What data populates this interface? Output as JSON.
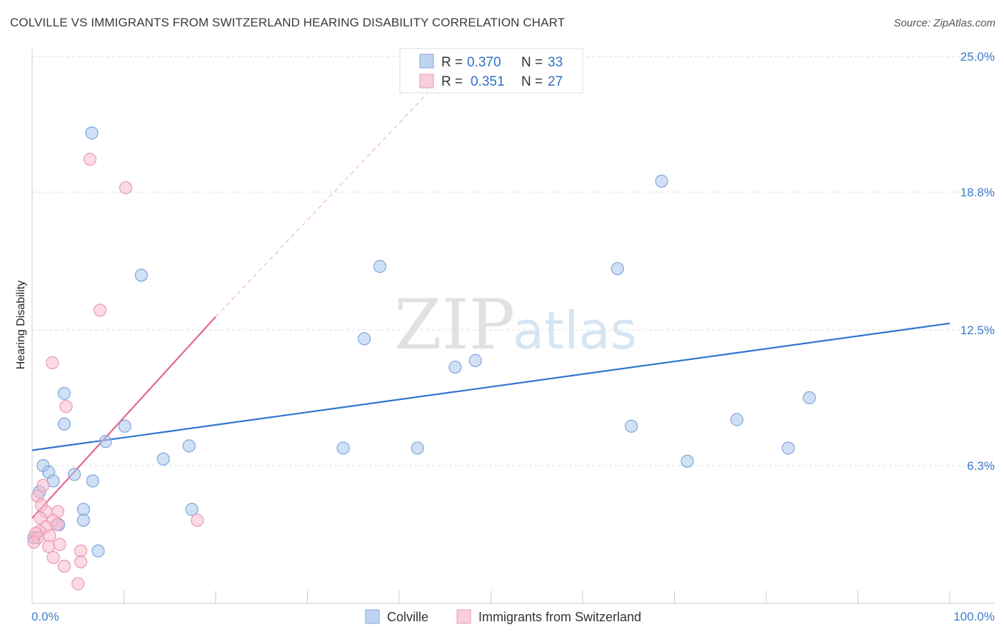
{
  "title": "COLVILLE VS IMMIGRANTS FROM SWITZERLAND HEARING DISABILITY CORRELATION CHART",
  "source": "Source: ZipAtlas.com",
  "watermark": {
    "zip": "ZIP",
    "atlas": "atlas"
  },
  "legend": {
    "rows": [
      {
        "r_label": "R =",
        "r_value": "0.370",
        "n_label": "N =",
        "n_value": "33"
      },
      {
        "r_label": "R =",
        "r_value": "0.351",
        "n_label": "N =",
        "n_value": "27"
      }
    ]
  },
  "chart_data": {
    "type": "scatter",
    "title": "COLVILLE VS IMMIGRANTS FROM SWITZERLAND HEARING DISABILITY CORRELATION CHART",
    "xlabel": "",
    "ylabel": "Hearing Disability",
    "xlim": [
      0,
      100
    ],
    "ylim": [
      0,
      25
    ],
    "x_tick_labels": [
      "0.0%",
      "100.0%"
    ],
    "y_ticks": [
      6.3,
      12.5,
      18.8,
      25.0
    ],
    "y_tick_labels": [
      "6.3%",
      "12.5%",
      "18.8%",
      "25.0%"
    ],
    "grid": true,
    "legend_position": "top-center",
    "series": [
      {
        "name": "Colville",
        "color": "#a9c6ec",
        "line_color": "#2f75d0",
        "R": 0.37,
        "N": 33,
        "trend": {
          "x": [
            0,
            100
          ],
          "y": [
            7.0,
            12.8
          ]
        },
        "points": [
          {
            "x": 6.5,
            "y": 21.5
          },
          {
            "x": 11.9,
            "y": 15.0
          },
          {
            "x": 3.5,
            "y": 9.6
          },
          {
            "x": 3.5,
            "y": 8.2
          },
          {
            "x": 10.1,
            "y": 8.1
          },
          {
            "x": 8.0,
            "y": 7.4
          },
          {
            "x": 1.2,
            "y": 6.3
          },
          {
            "x": 1.8,
            "y": 6.0
          },
          {
            "x": 2.3,
            "y": 5.6
          },
          {
            "x": 4.6,
            "y": 5.9
          },
          {
            "x": 6.6,
            "y": 5.6
          },
          {
            "x": 14.3,
            "y": 6.6
          },
          {
            "x": 17.1,
            "y": 7.2
          },
          {
            "x": 0.8,
            "y": 5.1
          },
          {
            "x": 5.6,
            "y": 4.3
          },
          {
            "x": 5.6,
            "y": 3.8
          },
          {
            "x": 2.9,
            "y": 3.6
          },
          {
            "x": 7.2,
            "y": 2.4
          },
          {
            "x": 17.4,
            "y": 4.3
          },
          {
            "x": 0.2,
            "y": 3.0
          },
          {
            "x": 42.0,
            "y": 7.1
          },
          {
            "x": 36.2,
            "y": 12.1
          },
          {
            "x": 37.9,
            "y": 15.4
          },
          {
            "x": 46.1,
            "y": 10.8
          },
          {
            "x": 33.9,
            "y": 7.1
          },
          {
            "x": 48.3,
            "y": 11.1
          },
          {
            "x": 63.8,
            "y": 15.3
          },
          {
            "x": 65.3,
            "y": 8.1
          },
          {
            "x": 68.6,
            "y": 19.3
          },
          {
            "x": 71.4,
            "y": 6.5
          },
          {
            "x": 76.8,
            "y": 8.4
          },
          {
            "x": 82.4,
            "y": 7.1
          },
          {
            "x": 84.7,
            "y": 9.4
          }
        ]
      },
      {
        "name": "Immigrants from Switzerland",
        "color": "#f7bccd",
        "line_color": "#e8648f",
        "R": 0.351,
        "N": 27,
        "trend": {
          "x": [
            0,
            20
          ],
          "y": [
            3.9,
            13.1
          ]
        },
        "trend_ext": {
          "x": [
            20,
            43.5
          ],
          "y": [
            13.1,
            23.5
          ]
        },
        "points": [
          {
            "x": 6.3,
            "y": 20.3
          },
          {
            "x": 10.2,
            "y": 19.0
          },
          {
            "x": 7.4,
            "y": 13.4
          },
          {
            "x": 2.2,
            "y": 11.0
          },
          {
            "x": 3.7,
            "y": 9.0
          },
          {
            "x": 1.2,
            "y": 5.4
          },
          {
            "x": 0.6,
            "y": 4.9
          },
          {
            "x": 1.0,
            "y": 4.5
          },
          {
            "x": 1.5,
            "y": 4.2
          },
          {
            "x": 2.8,
            "y": 4.2
          },
          {
            "x": 0.9,
            "y": 3.9
          },
          {
            "x": 2.3,
            "y": 3.8
          },
          {
            "x": 1.5,
            "y": 3.5
          },
          {
            "x": 0.8,
            "y": 3.3
          },
          {
            "x": 0.4,
            "y": 3.2
          },
          {
            "x": 1.9,
            "y": 3.1
          },
          {
            "x": 2.7,
            "y": 3.6
          },
          {
            "x": 0.6,
            "y": 3.0
          },
          {
            "x": 0.2,
            "y": 2.8
          },
          {
            "x": 1.8,
            "y": 2.6
          },
          {
            "x": 3.0,
            "y": 2.7
          },
          {
            "x": 2.3,
            "y": 2.1
          },
          {
            "x": 3.5,
            "y": 1.7
          },
          {
            "x": 5.3,
            "y": 2.4
          },
          {
            "x": 5.3,
            "y": 1.9
          },
          {
            "x": 5.0,
            "y": 0.9
          },
          {
            "x": 18.0,
            "y": 3.8
          }
        ]
      }
    ]
  }
}
